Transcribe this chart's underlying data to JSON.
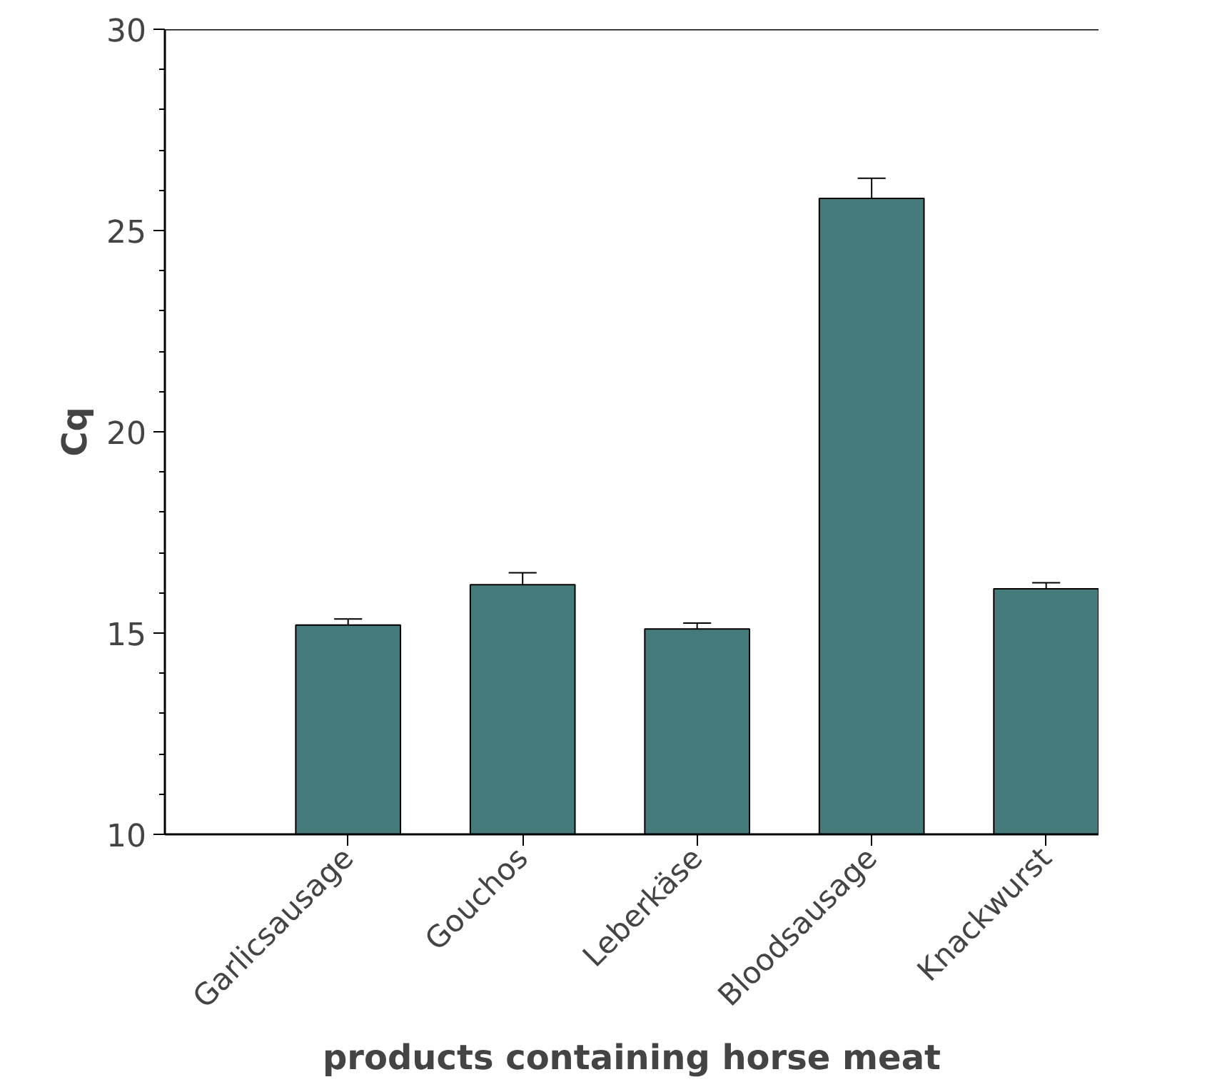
{
  "chart_data": {
    "type": "bar",
    "xlabel": "products containing horse meat",
    "ylabel": "Cq",
    "categories": [
      "Garlicsausage",
      "Gouchos",
      "Leberkäse",
      "Bloodsausage",
      "Knackwurst"
    ],
    "values": [
      15.2,
      16.2,
      15.1,
      25.8,
      16.1
    ],
    "errors": [
      [
        15.2,
        15.35
      ],
      [
        16.2,
        16.5
      ],
      [
        15.1,
        15.25
      ],
      [
        25.8,
        26.3
      ],
      [
        16.1,
        16.25
      ]
    ],
    "color": "#457b7b",
    "ylim": [
      10,
      30
    ],
    "yticks": [
      10,
      15,
      20,
      25,
      30
    ],
    "grid": false
  }
}
